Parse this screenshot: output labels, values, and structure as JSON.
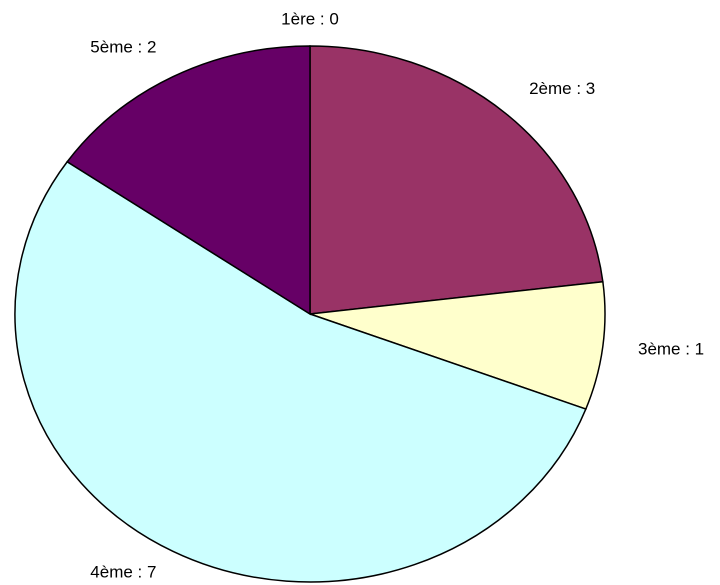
{
  "chart_data": {
    "type": "pie",
    "labels": [
      "1ère : 0",
      "2ème : 3",
      "3ème : 1",
      "4ème : 7",
      "5ème : 2"
    ],
    "values": [
      0,
      3,
      1,
      7,
      2
    ],
    "colors": [
      "#9999ff",
      "#993366",
      "#ffffcc",
      "#ccffff",
      "#660066"
    ]
  }
}
